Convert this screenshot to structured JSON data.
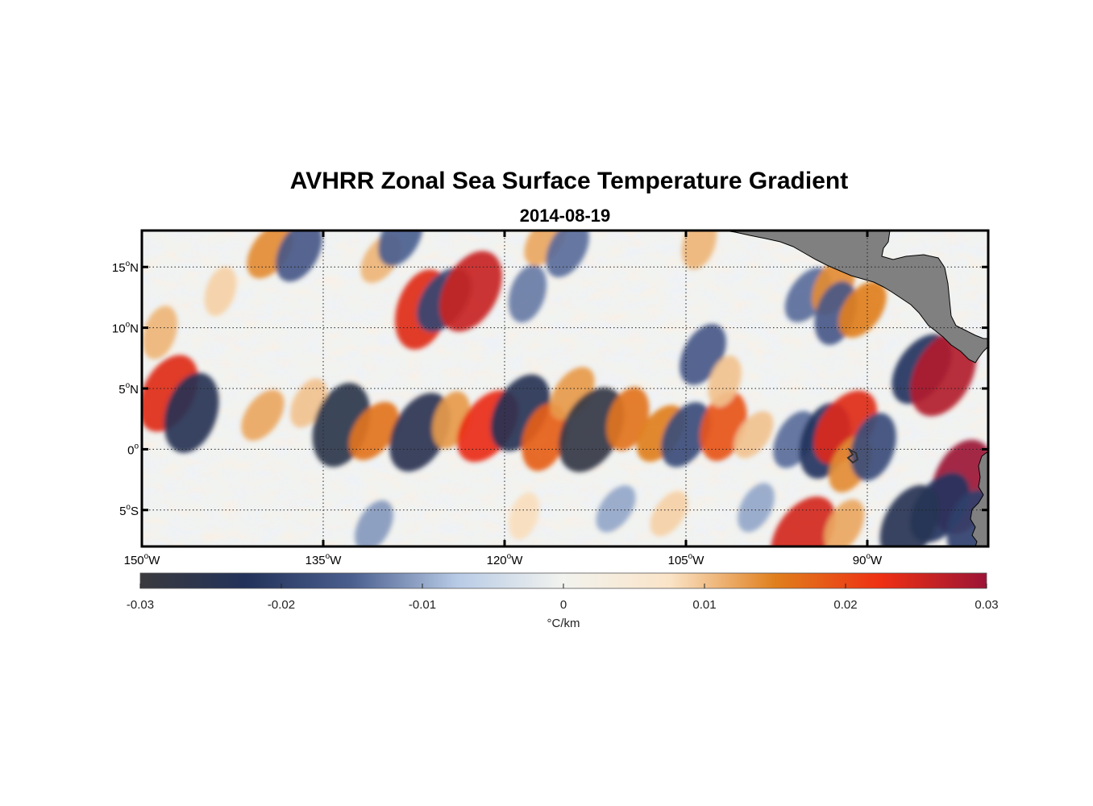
{
  "title": "AVHRR Zonal Sea Surface Temperature Gradient",
  "subtitle": "2014-08-19",
  "map": {
    "lon_range": [
      -150,
      -80
    ],
    "lat_range": [
      -8,
      18
    ],
    "lon_ticks": [
      {
        "value": -150,
        "num": "150",
        "hem": "W"
      },
      {
        "value": -135,
        "num": "135",
        "hem": "W"
      },
      {
        "value": -120,
        "num": "120",
        "hem": "W"
      },
      {
        "value": -105,
        "num": "105",
        "hem": "W"
      },
      {
        "value": -90,
        "num": "90",
        "hem": "W"
      }
    ],
    "lat_ticks": [
      {
        "value": 15,
        "num": "15",
        "hem": "N"
      },
      {
        "value": 10,
        "num": "10",
        "hem": "N"
      },
      {
        "value": 5,
        "num": "5",
        "hem": "N"
      },
      {
        "value": 0,
        "num": "0",
        "hem": ""
      },
      {
        "value": -5,
        "num": "5",
        "hem": "S"
      }
    ],
    "grid": true,
    "land_color": "#808080",
    "features": [
      {
        "lon": -147.8,
        "lat": 4.6,
        "v": 0.024
      },
      {
        "lon": -145.9,
        "lat": 3.0,
        "v": -0.024
      },
      {
        "lon": -140.0,
        "lat": 2.8,
        "v": 0.012
      },
      {
        "lon": -136.2,
        "lat": 3.8,
        "v": 0.01
      },
      {
        "lon": -133.5,
        "lat": 2.0,
        "v": -0.026
      },
      {
        "lon": -130.8,
        "lat": 1.5,
        "v": 0.016
      },
      {
        "lon": -127.0,
        "lat": 1.4,
        "v": -0.025
      },
      {
        "lon": -124.4,
        "lat": 2.4,
        "v": 0.013
      },
      {
        "lon": -121.4,
        "lat": 1.9,
        "v": 0.023
      },
      {
        "lon": -118.7,
        "lat": 3.0,
        "v": -0.024
      },
      {
        "lon": -116.7,
        "lat": 1.0,
        "v": 0.018
      },
      {
        "lon": -114.4,
        "lat": 4.6,
        "v": 0.013
      },
      {
        "lon": -112.8,
        "lat": 1.6,
        "v": -0.028
      },
      {
        "lon": -109.8,
        "lat": 2.5,
        "v": 0.016
      },
      {
        "lon": -107.1,
        "lat": 1.3,
        "v": 0.015
      },
      {
        "lon": -105.0,
        "lat": 1.2,
        "v": -0.018
      },
      {
        "lon": -101.9,
        "lat": 1.9,
        "v": 0.019
      },
      {
        "lon": -99.4,
        "lat": 1.2,
        "v": 0.01
      },
      {
        "lon": -96.0,
        "lat": 0.8,
        "v": -0.014
      },
      {
        "lon": -93.5,
        "lat": 0.7,
        "v": -0.022
      },
      {
        "lon": -91.8,
        "lat": 1.8,
        "v": 0.024
      },
      {
        "lon": -91.4,
        "lat": -1.2,
        "v": 0.014
      },
      {
        "lon": -89.5,
        "lat": 0.2,
        "v": -0.018
      },
      {
        "lon": -85.5,
        "lat": 6.6,
        "v": -0.022
      },
      {
        "lon": -83.7,
        "lat": 6.2,
        "v": 0.028
      },
      {
        "lon": -82.1,
        "lat": -3.1,
        "v": 0.031
      },
      {
        "lon": -84.0,
        "lat": -4.8,
        "v": -0.022
      },
      {
        "lon": -86.5,
        "lat": -6.1,
        "v": -0.024
      },
      {
        "lon": -81.4,
        "lat": -6.3,
        "v": -0.02
      },
      {
        "lon": -95.3,
        "lat": -7.0,
        "v": 0.025
      },
      {
        "lon": -91.9,
        "lat": -6.3,
        "v": 0.012
      },
      {
        "lon": -148.5,
        "lat": 9.6,
        "v": 0.011
      },
      {
        "lon": -139.4,
        "lat": 16.3,
        "v": 0.014
      },
      {
        "lon": -137.0,
        "lat": 16.3,
        "v": -0.016
      },
      {
        "lon": -126.8,
        "lat": 11.5,
        "v": 0.024
      },
      {
        "lon": -125.0,
        "lat": 12.3,
        "v": -0.019
      },
      {
        "lon": -122.8,
        "lat": 13.0,
        "v": 0.026
      },
      {
        "lon": -118.1,
        "lat": 12.8,
        "v": -0.013
      },
      {
        "lon": -116.6,
        "lat": 17.2,
        "v": 0.012
      },
      {
        "lon": -114.8,
        "lat": 16.5,
        "v": -0.014
      },
      {
        "lon": -103.9,
        "lat": 17.0,
        "v": 0.011
      },
      {
        "lon": -94.9,
        "lat": 12.7,
        "v": -0.014
      },
      {
        "lon": -92.8,
        "lat": 13.4,
        "v": 0.014
      },
      {
        "lon": -92.6,
        "lat": 11.2,
        "v": -0.016
      },
      {
        "lon": -90.4,
        "lat": 11.5,
        "v": 0.015
      },
      {
        "lon": -103.6,
        "lat": 7.8,
        "v": -0.016
      },
      {
        "lon": -101.8,
        "lat": 5.6,
        "v": 0.01
      },
      {
        "lon": -130.2,
        "lat": 15.7,
        "v": 0.011
      },
      {
        "lon": -128.6,
        "lat": 17.5,
        "v": -0.015
      },
      {
        "lon": -143.5,
        "lat": 13.0,
        "v": 0.009
      },
      {
        "lon": -110.8,
        "lat": -4.9,
        "v": -0.01
      },
      {
        "lon": -130.8,
        "lat": -6.3,
        "v": -0.011
      },
      {
        "lon": -118.4,
        "lat": -5.5,
        "v": 0.008
      },
      {
        "lon": -106.4,
        "lat": -5.3,
        "v": 0.009
      },
      {
        "lon": -99.2,
        "lat": -4.8,
        "v": -0.01
      }
    ]
  },
  "colorbar": {
    "range": [
      -0.03,
      0.03
    ],
    "ticks": [
      "-0.03",
      "-0.02",
      "-0.01",
      "0",
      "0.01",
      "0.02",
      "0.03"
    ],
    "tick_values": [
      -0.03,
      -0.02,
      -0.01,
      0,
      0.01,
      0.02,
      0.03
    ],
    "label": "°C/km",
    "stops": [
      "#3a3a3e",
      "#22325a",
      "#4b5f8f",
      "#b8cbe6",
      "#f2f3ee",
      "#fae4c8",
      "#e07f1d",
      "#ee3013",
      "#9c1436"
    ]
  }
}
